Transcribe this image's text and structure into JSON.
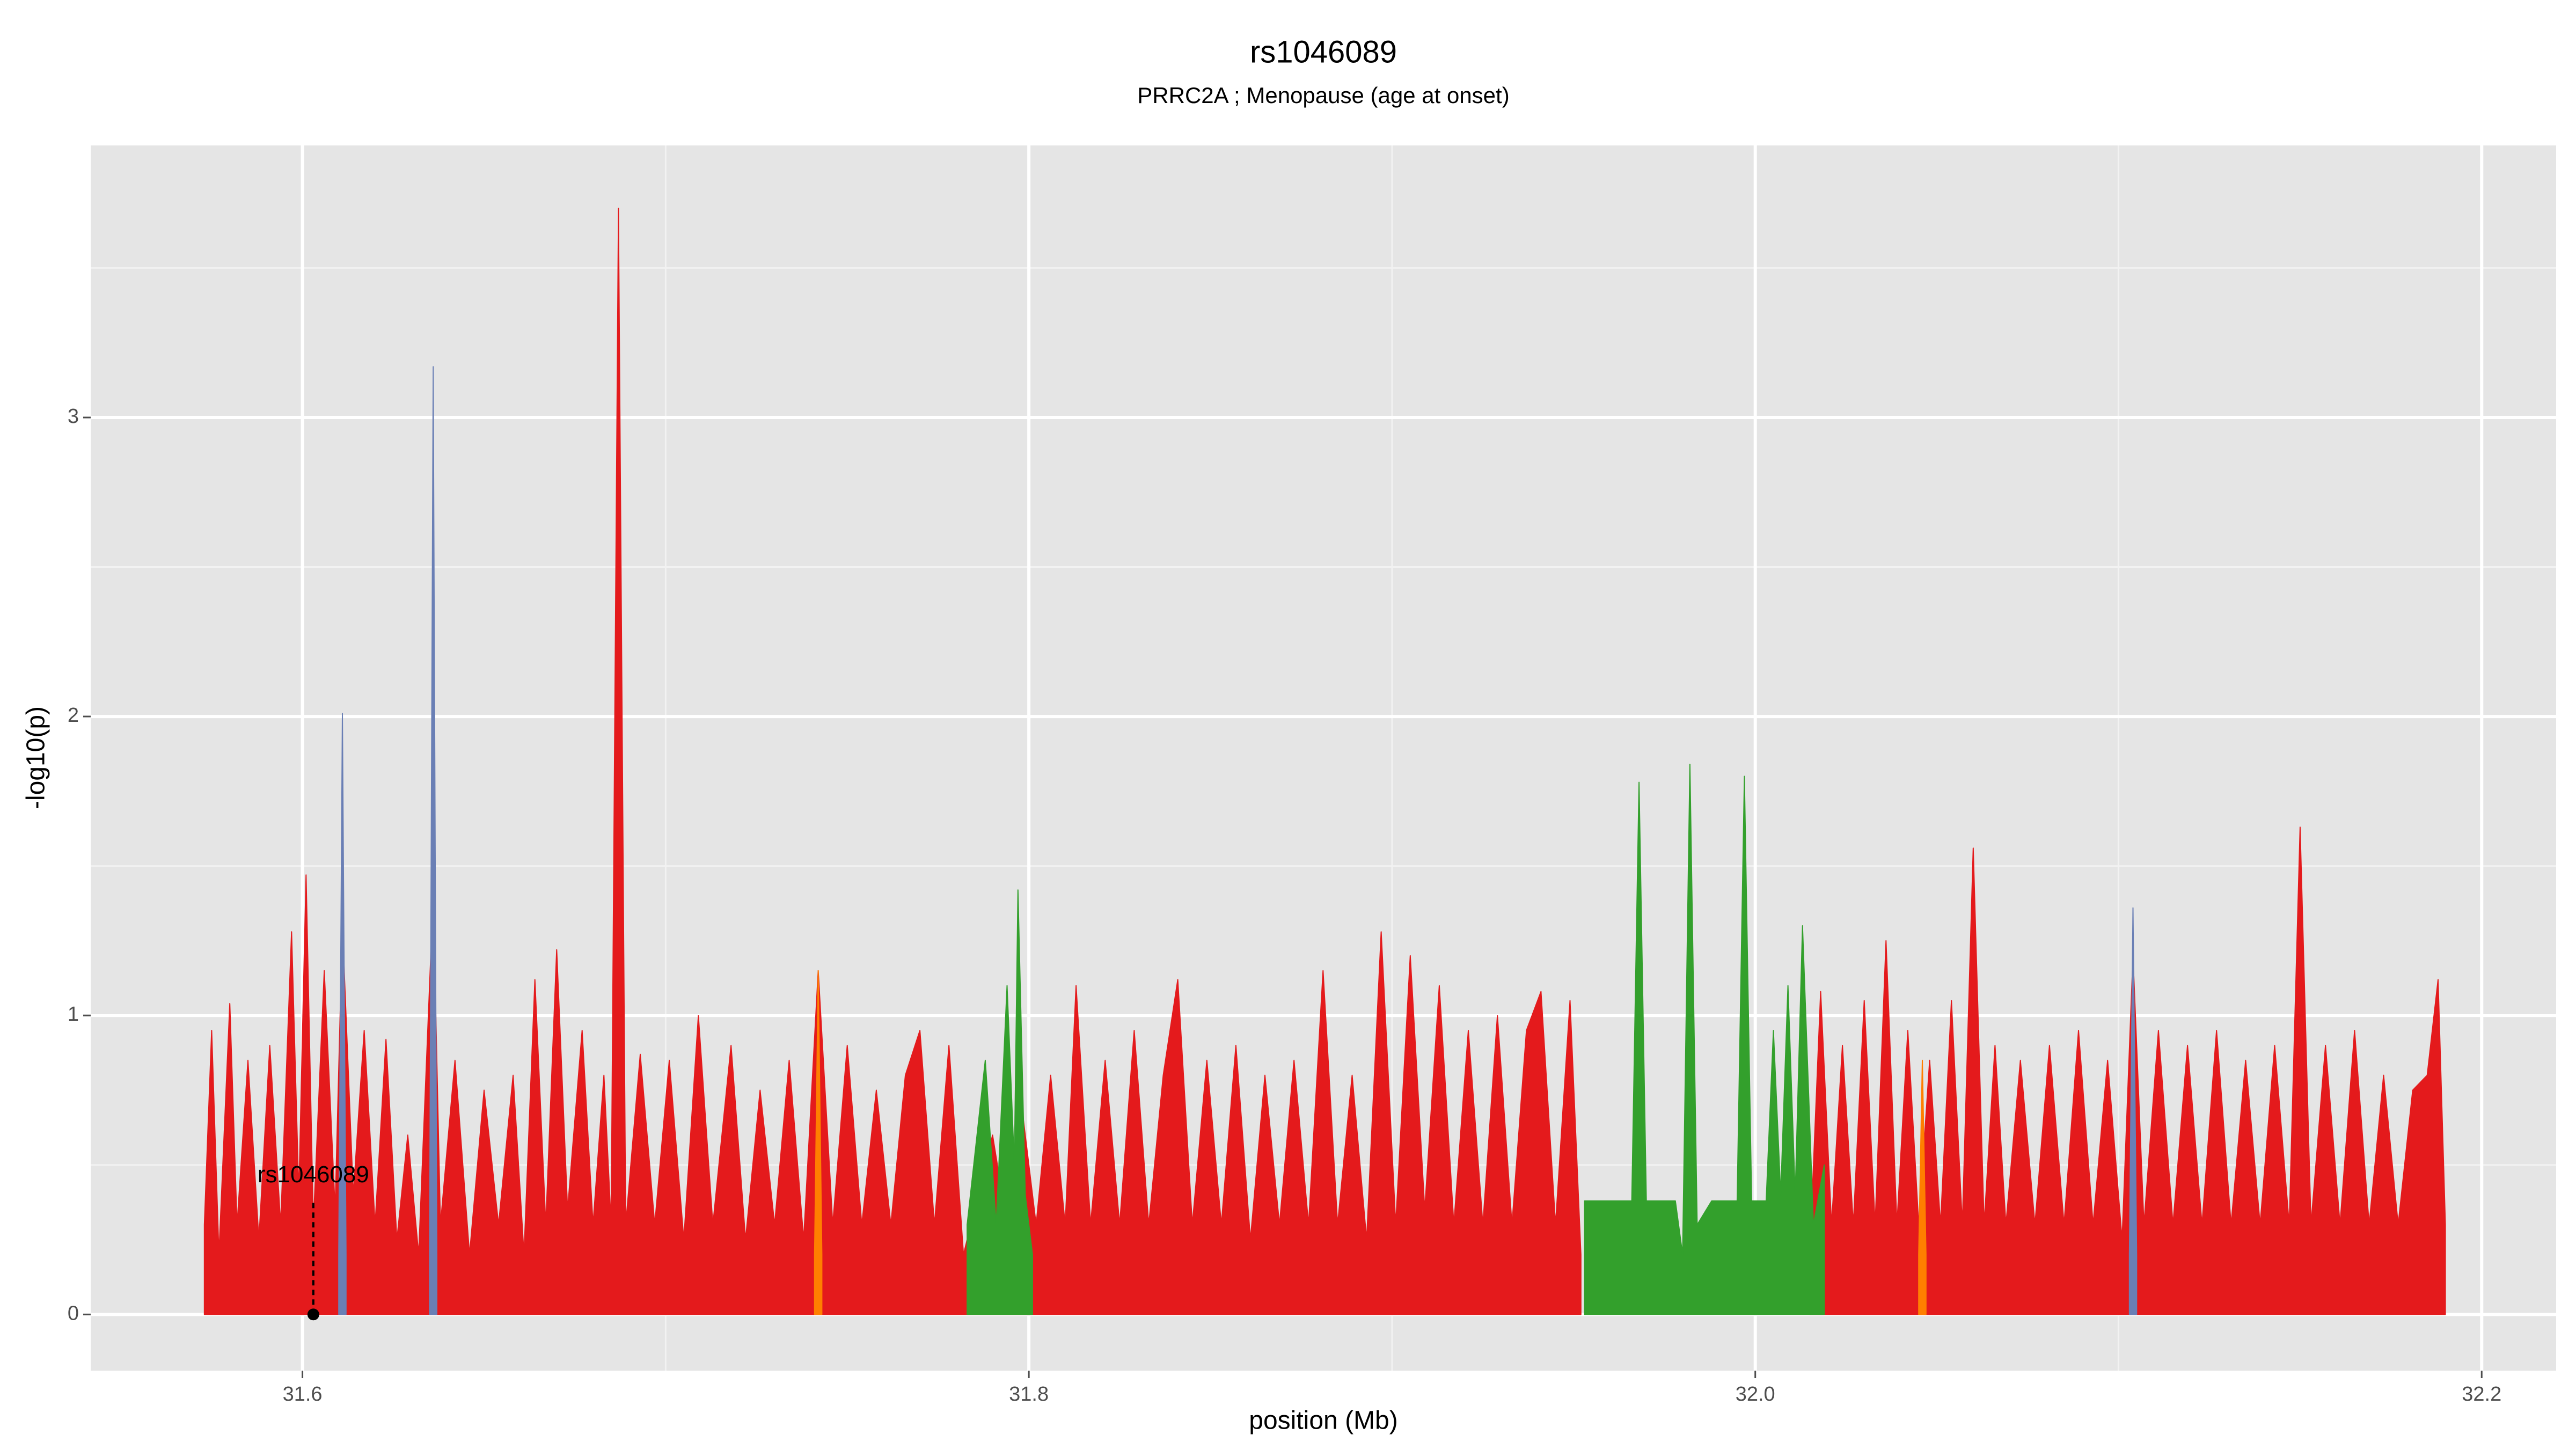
{
  "chart_data": {
    "type": "area",
    "title": "rs1046089",
    "subtitle": "PRRC2A ; Menopause (age at onset)",
    "xlabel": "position (Mb)",
    "ylabel": "-log10(p)",
    "xlim": [
      31.5417,
      32.2205
    ],
    "ylim": [
      -0.188,
      3.91
    ],
    "xticks": [
      31.6,
      31.8,
      {
        "value": 32,
        "label": "32.0"
      },
      32.2
    ],
    "yticks": [
      0,
      1,
      2,
      3
    ],
    "xminor": [
      31.7,
      31.9,
      32.1
    ],
    "yminor": [
      0.5,
      1.5,
      2.5,
      3.5
    ],
    "grid": true,
    "annotation": {
      "text": "rs1046089",
      "x": 31.603,
      "y": 0
    },
    "series": [
      {
        "color": "#e41a1c",
        "x": [
          31.573,
          31.575,
          31.577,
          31.58,
          31.582,
          31.585,
          31.588,
          31.591,
          31.594,
          31.597,
          31.599,
          31.601,
          31.603,
          31.606,
          31.609,
          31.611,
          31.614,
          31.617,
          31.62,
          31.623,
          31.626,
          31.629,
          31.632,
          31.636,
          31.638,
          31.642,
          31.646,
          31.65,
          31.654,
          31.658,
          31.661,
          31.664,
          31.667,
          31.67,
          31.673,
          31.677,
          31.68,
          31.683,
          31.685,
          31.687,
          31.689,
          31.693,
          31.697,
          31.701,
          31.705,
          31.709,
          31.713,
          31.718,
          31.722,
          31.726,
          31.73,
          31.734,
          31.738,
          31.742,
          31.746,
          31.75,
          31.754,
          31.758,
          31.762,
          31.766,
          31.77,
          31.774,
          31.778,
          31.782,
          31.786,
          31.79,
          31.794,
          31.798,
          31.802,
          31.806,
          31.81,
          31.813,
          31.817,
          31.821,
          31.825,
          31.829,
          31.833,
          31.837,
          31.841,
          31.845,
          31.849,
          31.853,
          31.857,
          31.861,
          31.865,
          31.869,
          31.873,
          31.877,
          31.881,
          31.885,
          31.889,
          31.893,
          31.897,
          31.901,
          31.905,
          31.909,
          31.913,
          31.917,
          31.921,
          31.925,
          31.929,
          31.933,
          31.937,
          31.941,
          31.945,
          31.949,
          31.952,
          null,
          32.015,
          32.018,
          32.021,
          32.024,
          32.027,
          32.03,
          32.033,
          32.036,
          32.039,
          32.042,
          32.045,
          32.048,
          32.051,
          32.054,
          32.057,
          32.06,
          32.063,
          32.066,
          32.069,
          32.073,
          32.077,
          32.081,
          32.085,
          32.089,
          32.093,
          32.097,
          32.101,
          32.104,
          32.107,
          32.111,
          32.115,
          32.119,
          32.123,
          32.127,
          32.131,
          32.135,
          32.139,
          32.143,
          32.147,
          32.15,
          32.153,
          32.157,
          32.161,
          32.165,
          32.169,
          32.173,
          32.177,
          32.181,
          32.185,
          32.188,
          32.19
        ],
        "values": [
          0.3,
          0.95,
          0.2,
          1.04,
          0.3,
          0.85,
          0.25,
          0.9,
          0.3,
          1.28,
          0.4,
          1.47,
          0.3,
          1.15,
          0.35,
          1.3,
          0.4,
          0.95,
          0.3,
          0.92,
          0.25,
          0.6,
          0.2,
          1.4,
          0.3,
          0.85,
          0.2,
          0.75,
          0.3,
          0.8,
          0.2,
          1.12,
          0.3,
          1.22,
          0.35,
          0.95,
          0.3,
          0.8,
          0.3,
          3.7,
          0.3,
          0.87,
          0.3,
          0.85,
          0.25,
          1.0,
          0.3,
          0.9,
          0.25,
          0.75,
          0.3,
          0.85,
          0.25,
          1.15,
          0.3,
          0.9,
          0.3,
          0.75,
          0.3,
          0.8,
          0.95,
          0.3,
          0.9,
          0.2,
          0.4,
          0.6,
          0.3,
          0.7,
          0.3,
          0.8,
          0.3,
          1.1,
          0.3,
          0.85,
          0.3,
          0.95,
          0.3,
          0.8,
          1.12,
          0.3,
          0.85,
          0.3,
          0.9,
          0.25,
          0.8,
          0.3,
          0.85,
          0.3,
          1.15,
          0.3,
          0.8,
          0.25,
          1.28,
          0.3,
          1.2,
          0.35,
          1.1,
          0.3,
          0.95,
          0.3,
          1.0,
          0.3,
          0.95,
          1.08,
          0.3,
          1.05,
          0.2,
          null,
          0.2,
          1.08,
          0.3,
          0.9,
          0.3,
          1.05,
          0.3,
          1.25,
          0.3,
          0.95,
          0.3,
          0.85,
          0.3,
          1.05,
          0.3,
          1.56,
          0.3,
          0.9,
          0.3,
          0.85,
          0.3,
          0.9,
          0.3,
          0.95,
          0.3,
          0.85,
          0.25,
          1.2,
          0.3,
          0.95,
          0.3,
          0.9,
          0.3,
          0.95,
          0.3,
          0.85,
          0.3,
          0.9,
          0.3,
          1.63,
          0.3,
          0.9,
          0.3,
          0.95,
          0.3,
          0.8,
          0.3,
          0.75,
          0.8,
          1.12,
          0.3
        ]
      },
      {
        "color": "#33a02c",
        "x": [
          31.783,
          31.788,
          31.791,
          31.794,
          31.796,
          31.797,
          31.799,
          31.801,
          null,
          31.953,
          31.966,
          31.968,
          31.97,
          31.978,
          31.98,
          31.982,
          31.984,
          31.988,
          31.995,
          31.997,
          31.999,
          32.003,
          32.005,
          32.007,
          32.009,
          32.011,
          32.013,
          32.016,
          32.019
        ],
        "values": [
          0.3,
          0.85,
          0.3,
          1.1,
          0.5,
          1.42,
          0.4,
          0.2,
          null,
          0.38,
          0.38,
          1.78,
          0.38,
          0.38,
          0.2,
          1.84,
          0.3,
          0.38,
          0.38,
          1.8,
          0.38,
          0.38,
          0.95,
          0.4,
          1.1,
          0.4,
          1.3,
          0.3,
          0.5
        ]
      },
      {
        "color": "#ff7f00",
        "x": [
          31.741,
          31.742,
          31.743,
          null,
          32.045,
          32.046,
          32.047
        ],
        "values": [
          0.2,
          1.15,
          0.2,
          null,
          0.2,
          0.85,
          0.2
        ]
      },
      {
        "color": "#6a7fb5",
        "x": [
          31.61,
          31.611,
          31.612,
          null,
          31.635,
          31.636,
          31.637,
          null,
          32.103,
          32.104,
          32.105
        ],
        "values": [
          0.2,
          2.01,
          0.2,
          null,
          0.2,
          3.17,
          0.2,
          null,
          0.2,
          1.36,
          0.2
        ]
      }
    ]
  }
}
